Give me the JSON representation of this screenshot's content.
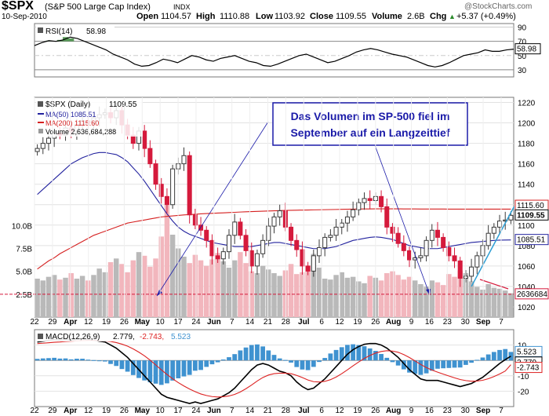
{
  "header": {
    "symbol": "$SPX",
    "name": "(S&P 500 Large Cap Index)",
    "exchange": "INDX",
    "brand": "@StockCharts.com",
    "date": "10-Sep-2010",
    "open_label": "Open",
    "open": "1104.57",
    "high_label": "High",
    "high": "1110.88",
    "low_label": "Low",
    "low": "1103.92",
    "close_label": "Close",
    "close": "1109.55",
    "volume_label": "Volume",
    "volume": "2.6B",
    "chg_label": "Chg",
    "chg": "+5.37 (+0.49%)",
    "chg_arrow": "▲"
  },
  "colors": {
    "up": "#3a3a3a",
    "down": "#d51a3c",
    "ma50": "#22229e",
    "ma200": "#d52020",
    "volume_up": "#b9b9b9",
    "volume_down": "#f2b6bd",
    "macd_hist": "#3f92d0",
    "macd": "#000000",
    "macd_signal": "#dd2222",
    "rsi_line": "#000000",
    "rsi_fill": "#3c8a3c",
    "annotation": "#1a1aa8",
    "trend": "#2e9fd4"
  },
  "annotation": {
    "line1": "Das Volumen im SP-500 fiel im",
    "line2": "September auf ein Langzeittief"
  },
  "chart_data": [
    {
      "panel": "rsi",
      "type": "line",
      "title": "RSI(14)",
      "value_label": "58.98",
      "ylim": [
        20,
        95
      ],
      "yticks": [
        90,
        70,
        50,
        30
      ],
      "overbought": 70,
      "oversold": 30,
      "values": [
        64,
        68,
        71,
        70,
        72,
        76,
        74,
        70,
        66,
        62,
        58,
        52,
        48,
        44,
        38,
        35,
        36,
        40,
        45,
        43,
        40,
        45,
        50,
        48,
        44,
        42,
        46,
        48,
        50,
        46,
        42,
        40,
        36,
        35,
        38,
        42,
        46,
        50,
        52,
        48,
        44,
        40,
        42,
        46,
        50,
        55,
        58,
        60,
        58,
        55,
        52,
        50,
        48,
        44,
        40,
        36,
        34,
        36,
        40,
        45,
        50,
        52,
        54,
        58,
        56,
        56,
        58,
        58.98
      ]
    },
    {
      "panel": "price",
      "type": "candlestick",
      "title": "$SPX (Daily)",
      "value_label": "1109.55",
      "ylim": [
        1010,
        1225
      ],
      "yticks": [
        1220,
        1200,
        1180,
        1160,
        1140,
        1120,
        1100,
        1080,
        1060,
        1040,
        1020
      ],
      "close": [
        1175,
        1180,
        1185,
        1190,
        1188,
        1195,
        1192,
        1198,
        1202,
        1200,
        1205,
        1208,
        1210,
        1205,
        1212,
        1198,
        1188,
        1180,
        1192,
        1175,
        1160,
        1140,
        1128,
        1120,
        1155,
        1160,
        1168,
        1110,
        1100,
        1095,
        1085,
        1070,
        1067,
        1074,
        1090,
        1103,
        1090,
        1075,
        1060,
        1072,
        1085,
        1099,
        1108,
        1114,
        1098,
        1085,
        1076,
        1060,
        1055,
        1070,
        1078,
        1088,
        1090,
        1098,
        1102,
        1108,
        1115,
        1122,
        1126,
        1124,
        1128,
        1118,
        1098,
        1092,
        1082,
        1075,
        1066,
        1068,
        1070,
        1085,
        1095,
        1088,
        1078,
        1070,
        1065,
        1048,
        1050,
        1059,
        1070,
        1080,
        1092,
        1098,
        1104,
        1105,
        1109.55
      ],
      "ma50_label": "MA(50) 1085.51",
      "ma50": [
        1130,
        1135,
        1140,
        1145,
        1150,
        1155,
        1160,
        1163,
        1166,
        1168,
        1170,
        1171,
        1171,
        1170,
        1169,
        1166,
        1162,
        1156,
        1150,
        1143,
        1135,
        1127,
        1119,
        1111,
        1104,
        1098,
        1094,
        1091,
        1089,
        1087,
        1085,
        1083,
        1082,
        1081,
        1080,
        1079,
        1079,
        1079,
        1079,
        1080,
        1081,
        1082,
        1083,
        1083,
        1082,
        1081,
        1080,
        1079,
        1078,
        1077,
        1077,
        1077,
        1078,
        1079,
        1081,
        1083,
        1085,
        1086,
        1087,
        1088,
        1088.5,
        1088,
        1087,
        1086,
        1084,
        1082,
        1080,
        1079,
        1078,
        1077,
        1077,
        1077,
        1078,
        1079,
        1080,
        1081,
        1082,
        1083,
        1083.5,
        1084,
        1084.5,
        1085,
        1085.3,
        1085.4,
        1085.51
      ],
      "ma200_label": "MA(200) 1115.60",
      "ma200": [
        1057,
        1061,
        1065,
        1068,
        1072,
        1075,
        1078,
        1081,
        1084,
        1087,
        1090,
        1092,
        1094,
        1096,
        1098,
        1100,
        1102,
        1103,
        1104,
        1105,
        1106,
        1107,
        1108,
        1108.5,
        1109,
        1109.5,
        1110,
        1110.3,
        1110.6,
        1111,
        1111.3,
        1111.5,
        1111.8,
        1112,
        1112.3,
        1112.5,
        1112.8,
        1113,
        1113.2,
        1113.4,
        1113.6,
        1113.8,
        1114,
        1114.2,
        1114.4,
        1114.5,
        1114.6,
        1114.7,
        1114.8,
        1114.9,
        1115,
        1115.1,
        1115.2,
        1115.3,
        1115.4,
        1115.5,
        1115.6,
        1115.7,
        1115.8,
        1115.8,
        1115.9,
        1115.9,
        1115.9,
        1115.9,
        1115.9,
        1115.8,
        1115.8,
        1115.8,
        1115.7,
        1115.7,
        1115.7,
        1115.7,
        1115.7,
        1115.6,
        1115.6,
        1115.6,
        1115.6,
        1115.6,
        1115.6,
        1115.6,
        1115.6,
        1115.6,
        1115.6,
        1115.6,
        1115.6
      ],
      "volume_label": "Volume 2,636,684,288",
      "volume_axis": "left",
      "volume_ylim": [
        0,
        24
      ],
      "volume_ticks": [
        "10.0B",
        "7.5B",
        "5.0B",
        "2.5B"
      ],
      "volume_values": [
        4.2,
        4.0,
        4.4,
        4.6,
        4.1,
        4.3,
        4.8,
        4.2,
        4.5,
        4.0,
        4.6,
        5.3,
        4.9,
        6.0,
        6.4,
        5.8,
        4.9,
        6.2,
        7.1,
        6.7,
        5.5,
        6.4,
        8.8,
        12.2,
        9.0,
        7.5,
        6.6,
        5.9,
        6.8,
        6.2,
        5.6,
        6.3,
        7.0,
        6.1,
        5.4,
        6.2,
        7.1,
        5.9,
        5.0,
        4.8,
        5.6,
        5.2,
        4.8,
        4.5,
        5.1,
        5.8,
        4.7,
        4.9,
        5.6,
        6.9,
        5.4,
        4.2,
        4.1,
        4.6,
        4.9,
        4.3,
        4.4,
        3.9,
        3.7,
        4.5,
        4.3,
        4.0,
        4.8,
        5.0,
        4.6,
        4.1,
        4.4,
        4.0,
        3.6,
        3.3,
        4.0,
        3.8,
        3.5,
        4.7,
        4.4,
        5.1,
        4.8,
        3.9,
        3.3,
        3.0,
        3.6,
        3.2,
        3.1,
        2.9,
        2.6
      ],
      "right_labels": [
        "1115.60",
        "1109.55",
        "1085.51",
        "2636684"
      ],
      "volume_reference": "2.5B",
      "x_labels": [
        "22",
        "29",
        "Apr",
        "12",
        "19",
        "26",
        "May",
        "10",
        "17",
        "24",
        "Jun",
        "7",
        "14",
        "21",
        "28",
        "Jul",
        "6",
        "12",
        "19",
        "26",
        "Aug",
        "9",
        "16",
        "23",
        "30",
        "Sep",
        "7"
      ]
    },
    {
      "panel": "macd",
      "type": "line",
      "title": "MACD(12,26,9)",
      "value_labels": [
        "2.779",
        "-2.743",
        "5.523"
      ],
      "ylim": [
        -30,
        20
      ],
      "yticks": [
        10,
        0,
        -10,
        -20
      ],
      "right_labels": [
        "5.523",
        "2.779",
        "-2.743"
      ],
      "macd": [
        12,
        12.5,
        13,
        13.5,
        13.2,
        13.6,
        13.2,
        13.8,
        14,
        13.5,
        13.2,
        12.5,
        12,
        10,
        8,
        5,
        2,
        -2,
        -6,
        -10,
        -14,
        -18,
        -22,
        -24,
        -25,
        -26,
        -27,
        -28,
        -27,
        -28,
        -27,
        -26,
        -25,
        -23,
        -21,
        -18,
        -14,
        -10,
        -6,
        -3,
        -2,
        -3,
        -5,
        -7,
        -8,
        -10,
        -14,
        -17,
        -19,
        -18,
        -15,
        -12,
        -8,
        -4,
        0,
        4,
        7,
        9,
        10.5,
        11,
        11,
        10,
        8,
        5,
        2,
        -2,
        -6,
        -9,
        -12,
        -13,
        -13,
        -13,
        -14,
        -15,
        -16,
        -17,
        -16,
        -15,
        -13,
        -11,
        -8,
        -5,
        -2,
        0.5,
        2.779
      ],
      "signal": [
        11,
        11.2,
        11.5,
        11.8,
        12,
        12.3,
        12.5,
        12.7,
        12.9,
        13,
        13,
        12.9,
        12.7,
        12.3,
        11.6,
        10.6,
        9.3,
        7.5,
        5.4,
        3,
        0.2,
        -2.9,
        -6.1,
        -9.1,
        -11.9,
        -14.4,
        -16.6,
        -18.6,
        -20.3,
        -21.8,
        -22.8,
        -23.5,
        -23.8,
        -23.6,
        -23.1,
        -22.1,
        -20.5,
        -18.4,
        -16,
        -13.4,
        -11.1,
        -9.5,
        -8.6,
        -8.3,
        -8.3,
        -8.6,
        -9.7,
        -11.1,
        -12.7,
        -13.8,
        -14,
        -13.6,
        -12.5,
        -10.8,
        -8.6,
        -6.1,
        -3.5,
        -1,
        1.3,
        3.2,
        4.8,
        5.8,
        6.3,
        6.1,
        5.3,
        3.8,
        1.9,
        -0.3,
        -2.6,
        -4.6,
        -6.3,
        -7.6,
        -8.9,
        -10.1,
        -11.3,
        -12.4,
        -13.1,
        -13.5,
        -13.4,
        -12.9,
        -11.9,
        -10.5,
        -8.8,
        -6.9,
        -2.743
      ],
      "histogram": [
        1,
        1.3,
        1.5,
        1.7,
        1.2,
        1.3,
        0.7,
        1.1,
        1.1,
        0.5,
        0.2,
        -0.4,
        -0.7,
        -2.3,
        -3.6,
        -5.6,
        -7.3,
        -9.5,
        -11.4,
        -13,
        -14.2,
        -15.1,
        -15.9,
        -14.9,
        -13.1,
        -11.6,
        -10.4,
        -9.4,
        -6.7,
        -6.2,
        -4.2,
        -2.5,
        -1.2,
        0.6,
        2.1,
        4.1,
        6.5,
        8.4,
        10,
        10.4,
        9.1,
        6.5,
        3.6,
        1.3,
        0.3,
        -1.4,
        -4.3,
        -5.9,
        -6.3,
        -4.2,
        -1,
        1.6,
        4.5,
        6.8,
        8.6,
        10.1,
        10.5,
        10,
        9.2,
        7.8,
        6.2,
        4.2,
        1.7,
        -1.1,
        -3.3,
        -5.8,
        -7.9,
        -8.7,
        -9.4,
        -8.4,
        -6.7,
        -5.4,
        -5.1,
        -4.9,
        -4.7,
        -4.6,
        -2.9,
        -1.5,
        0.4,
        1.9,
        3.9,
        5.5,
        6.8,
        7.4,
        5.523
      ]
    }
  ]
}
